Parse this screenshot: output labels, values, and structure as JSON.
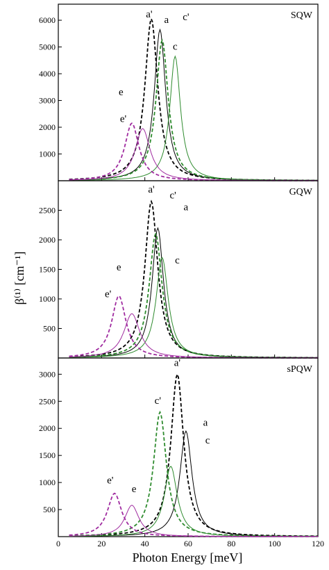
{
  "figure": {
    "xlabel": "Photon Energy [meV]",
    "ylabel": "β⁽¹⁾ [cm⁻¹]",
    "xlim": [
      0,
      120
    ],
    "x_ticks": [
      0,
      20,
      40,
      60,
      80,
      100,
      120
    ]
  },
  "chart_data": [
    {
      "type": "line",
      "title": "SQW",
      "ylim": [
        0,
        6600
      ],
      "y_ticks": [
        1000,
        2000,
        3000,
        4000,
        5000,
        6000
      ],
      "series": [
        {
          "id": "a",
          "label": "a",
          "color": "#000000",
          "dashed": false,
          "peak_x": 47,
          "peak_y": 5650,
          "width": 3.2
        },
        {
          "id": "a_prime",
          "label": "a'",
          "color": "#000000",
          "dashed": true,
          "peak_x": 43,
          "peak_y": 6050,
          "width": 3.6
        },
        {
          "id": "c",
          "label": "c",
          "color": "#2e8b2e",
          "dashed": false,
          "peak_x": 54,
          "peak_y": 4650,
          "width": 3.0
        },
        {
          "id": "c_prime",
          "label": "c'",
          "color": "#2e8b2e",
          "dashed": true,
          "peak_x": 48,
          "peak_y": 5250,
          "width": 3.4
        },
        {
          "id": "e",
          "label": "e",
          "color": "#a02ca0",
          "dashed": false,
          "peak_x": 39,
          "peak_y": 1950,
          "width": 4.2
        },
        {
          "id": "e_prime",
          "label": "e'",
          "color": "#a02ca0",
          "dashed": true,
          "peak_x": 34,
          "peak_y": 2150,
          "width": 4.0
        }
      ],
      "annotations": [
        {
          "text": "a'",
          "x": 42,
          "y": 6100
        },
        {
          "text": "a",
          "x": 50,
          "y": 5900
        },
        {
          "text": "c'",
          "x": 59,
          "y": 6000
        },
        {
          "text": "c",
          "x": 54,
          "y": 4900
        },
        {
          "text": "e",
          "x": 29,
          "y": 3200
        },
        {
          "text": "e'",
          "x": 30,
          "y": 2200
        }
      ]
    },
    {
      "type": "line",
      "title": "GQW",
      "ylim": [
        0,
        3000
      ],
      "y_ticks": [
        500,
        1000,
        1500,
        2000,
        2500
      ],
      "series": [
        {
          "id": "a",
          "label": "a",
          "color": "#000000",
          "dashed": false,
          "peak_x": 46,
          "peak_y": 2200,
          "width": 3.2
        },
        {
          "id": "a_prime",
          "label": "a'",
          "color": "#000000",
          "dashed": true,
          "peak_x": 43,
          "peak_y": 2650,
          "width": 3.6
        },
        {
          "id": "c",
          "label": "c",
          "color": "#2e8b2e",
          "dashed": false,
          "peak_x": 48,
          "peak_y": 1700,
          "width": 3.4
        },
        {
          "id": "c_prime",
          "label": "c'",
          "color": "#2e8b2e",
          "dashed": true,
          "peak_x": 45,
          "peak_y": 2100,
          "width": 3.6
        },
        {
          "id": "e",
          "label": "e",
          "color": "#a02ca0",
          "dashed": false,
          "peak_x": 34,
          "peak_y": 750,
          "width": 4.5
        },
        {
          "id": "e_prime",
          "label": "e'",
          "color": "#a02ca0",
          "dashed": true,
          "peak_x": 28,
          "peak_y": 1050,
          "width": 4.0
        }
      ],
      "annotations": [
        {
          "text": "a'",
          "x": 43,
          "y": 2800
        },
        {
          "text": "c'",
          "x": 53,
          "y": 2700
        },
        {
          "text": "a",
          "x": 59,
          "y": 2500
        },
        {
          "text": "c",
          "x": 55,
          "y": 1600
        },
        {
          "text": "e",
          "x": 28,
          "y": 1480
        },
        {
          "text": "e'",
          "x": 23,
          "y": 1030
        }
      ]
    },
    {
      "type": "line",
      "title": "sPQW",
      "ylim": [
        0,
        3300
      ],
      "y_ticks": [
        500,
        1000,
        1500,
        2000,
        2500,
        3000
      ],
      "series": [
        {
          "id": "a",
          "label": "a",
          "color": "#000000",
          "dashed": false,
          "peak_x": 59,
          "peak_y": 1950,
          "width": 3.4
        },
        {
          "id": "a_prime",
          "label": "a'",
          "color": "#000000",
          "dashed": true,
          "peak_x": 55,
          "peak_y": 3000,
          "width": 3.6
        },
        {
          "id": "c",
          "label": "c",
          "color": "#2e8b2e",
          "dashed": false,
          "peak_x": 52,
          "peak_y": 1300,
          "width": 3.6
        },
        {
          "id": "c_prime",
          "label": "c'",
          "color": "#2e8b2e",
          "dashed": true,
          "peak_x": 47,
          "peak_y": 2300,
          "width": 3.6
        },
        {
          "id": "e",
          "label": "e",
          "color": "#a02ca0",
          "dashed": false,
          "peak_x": 34,
          "peak_y": 580,
          "width": 4.0
        },
        {
          "id": "e_prime",
          "label": "e'",
          "color": "#a02ca0",
          "dashed": true,
          "peak_x": 26,
          "peak_y": 800,
          "width": 4.0
        }
      ],
      "annotations": [
        {
          "text": "a'",
          "x": 55,
          "y": 3150
        },
        {
          "text": "c'",
          "x": 46,
          "y": 2450
        },
        {
          "text": "a",
          "x": 68,
          "y": 2050
        },
        {
          "text": "c",
          "x": 69,
          "y": 1720
        },
        {
          "text": "e",
          "x": 35,
          "y": 820
        },
        {
          "text": "e'",
          "x": 24,
          "y": 980
        }
      ]
    }
  ]
}
